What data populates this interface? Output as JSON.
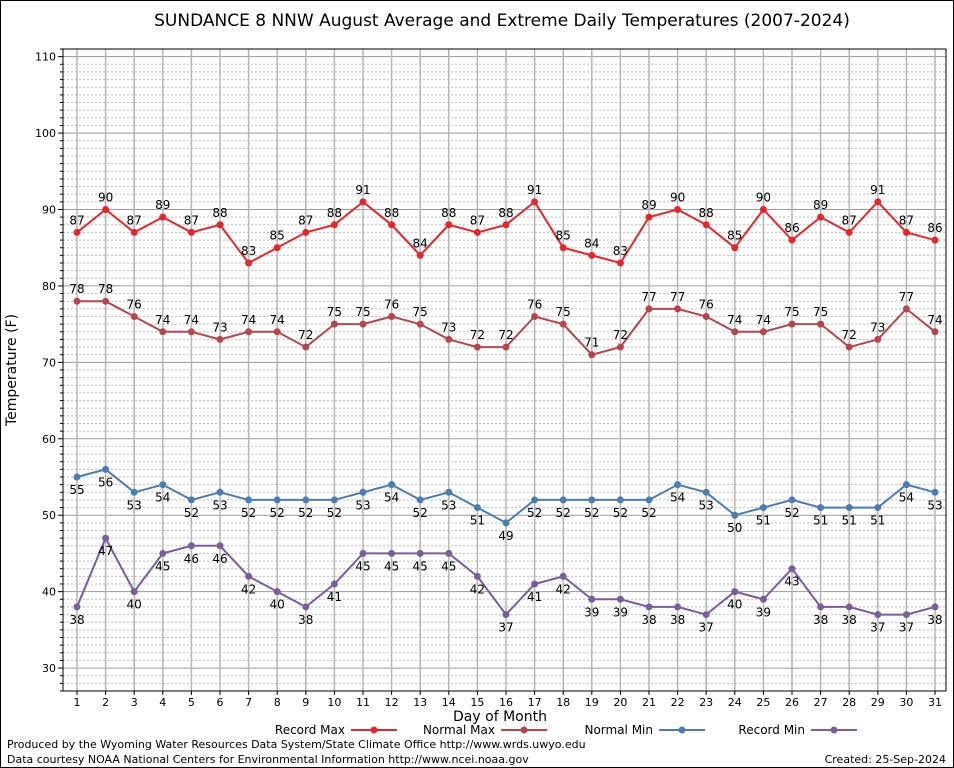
{
  "chart_data": {
    "type": "line",
    "title": "SUNDANCE 8 NNW August Average and Extreme Daily Temperatures (2007-2024)",
    "xlabel": "Day of Month",
    "ylabel": "Temperature (F)",
    "ylim": [
      27,
      111
    ],
    "yticks": [
      30,
      40,
      50,
      60,
      70,
      80,
      90,
      100,
      110
    ],
    "x": [
      1,
      2,
      3,
      4,
      5,
      6,
      7,
      8,
      9,
      10,
      11,
      12,
      13,
      14,
      15,
      16,
      17,
      18,
      19,
      20,
      21,
      22,
      23,
      24,
      25,
      26,
      27,
      28,
      29,
      30,
      31
    ],
    "grid": true,
    "legend_position": "bottom",
    "series": [
      {
        "name": "Record Max",
        "color": "#e8252a",
        "labelPos": "above",
        "values": [
          87,
          90,
          87,
          89,
          87,
          88,
          83,
          85,
          87,
          88,
          91,
          88,
          84,
          88,
          87,
          88,
          91,
          85,
          84,
          83,
          89,
          90,
          88,
          85,
          90,
          86,
          89,
          87,
          91,
          87,
          86
        ]
      },
      {
        "name": "Normal Max",
        "color": "#b8454c",
        "labelPos": "above",
        "values": [
          78,
          78,
          76,
          74,
          74,
          73,
          74,
          74,
          72,
          75,
          75,
          76,
          75,
          73,
          72,
          72,
          76,
          75,
          71,
          72,
          77,
          77,
          76,
          74,
          74,
          75,
          75,
          72,
          73,
          77,
          74
        ]
      },
      {
        "name": "Normal Min",
        "color": "#4a7db5",
        "labelPos": "below",
        "values": [
          55,
          56,
          53,
          54,
          52,
          53,
          52,
          52,
          52,
          52,
          53,
          54,
          52,
          53,
          51,
          49,
          52,
          52,
          52,
          52,
          52,
          54,
          53,
          50,
          51,
          52,
          51,
          51,
          51,
          54,
          53
        ]
      },
      {
        "name": "Record Min",
        "color": "#7b5c9e",
        "labelPos": "below",
        "values": [
          38,
          47,
          40,
          45,
          46,
          46,
          42,
          40,
          38,
          41,
          45,
          45,
          45,
          45,
          42,
          37,
          41,
          42,
          39,
          39,
          38,
          38,
          37,
          40,
          39,
          43,
          38,
          38,
          37,
          37,
          38
        ]
      }
    ]
  },
  "footer": {
    "produced_by": "Produced by the Wyoming Water Resources Data System/State Climate Office http://www.wrds.uwyo.edu",
    "courtesy": "Data courtesy NOAA National Centers for Environmental Information http://www.ncei.noaa.gov",
    "created": "Created:  25-Sep-2024"
  }
}
